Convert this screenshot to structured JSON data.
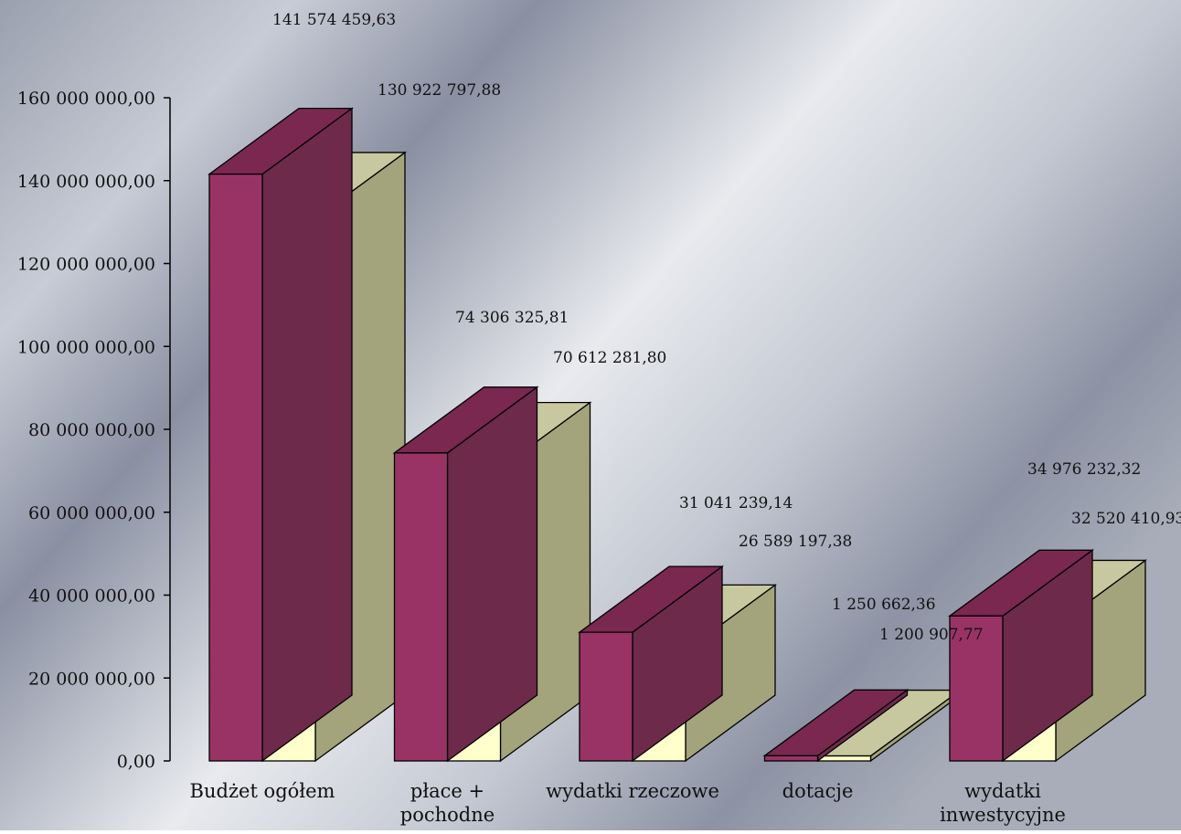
{
  "chart_data": {
    "type": "bar",
    "style": "3d-clustered",
    "categories": [
      [
        "Budżet ogółem"
      ],
      [
        "płace +",
        "pochodne"
      ],
      [
        "wydatki rzeczowe"
      ],
      [
        "dotacje"
      ],
      [
        "wydatki",
        "inwestycyjne"
      ]
    ],
    "series": [
      {
        "color": "#993366",
        "values": [
          141574459.63,
          74306325.81,
          31041239.14,
          1250662.36,
          34976232.32
        ],
        "labels": [
          "141 574 459,63",
          "74 306 325,81",
          "31 041 239,14",
          "1 250 662,36",
          "34 976 232,32"
        ]
      },
      {
        "color": "#ffffcc",
        "values": [
          130922797.88,
          70612281.8,
          26589197.38,
          1200907.77,
          32520410.93
        ],
        "labels": [
          "130 922 797,88",
          "70 612 281,80",
          "26 589 197,38",
          "1 200 907,77",
          "32 520 410,93"
        ]
      }
    ],
    "ylim": [
      0,
      160000000
    ],
    "yticks": [
      "0,00",
      "20 000 000,00",
      "40 000 000,00",
      "60 000 000,00",
      "80 000 000,00",
      "100 000 000,00",
      "120 000 000,00",
      "140 000 000,00",
      "160 000 000,00"
    ],
    "xlabel": "",
    "ylabel": "",
    "title": "",
    "grid": false,
    "legend": "none",
    "background": "silver-gradient"
  }
}
